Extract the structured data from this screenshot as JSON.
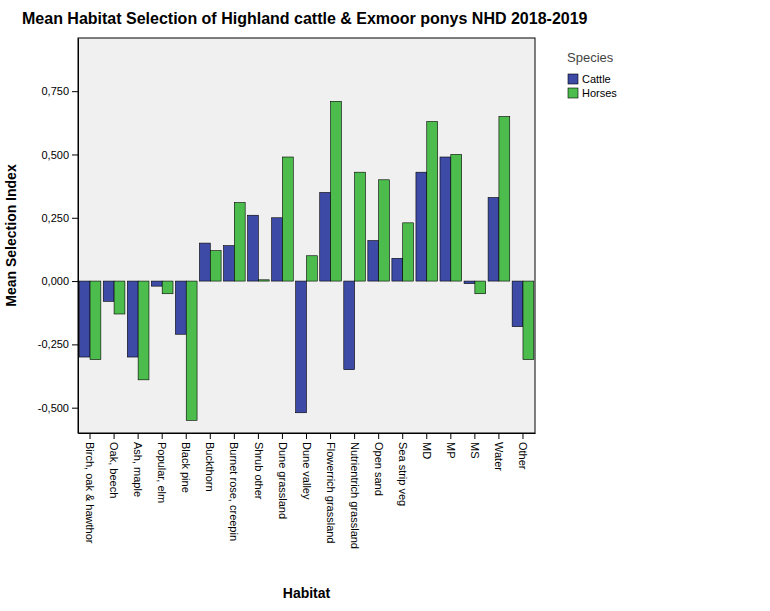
{
  "chart_data": {
    "type": "bar",
    "title": "Mean Habitat Selection of Highland cattle & Exmoor ponys NHD 2018-2019",
    "x_label": "Habitat",
    "y_label": "Mean Selection Index",
    "legend_title": "Species",
    "legend": "right",
    "grid": false,
    "categories": [
      "Birch, oak & hawthor",
      "Oak, beech",
      "Ash, maple",
      "Popular, elm",
      "Black pine",
      "Buckthorn",
      "Burnet rose, creepin",
      "Shrub other",
      "Dune grassland",
      "Dune valley",
      "Flowerrich grassland",
      "Nutrientrich grassland",
      "Open sand",
      "Sea strip veg",
      "MD",
      "MP",
      "MS",
      "Water",
      "Other"
    ],
    "series": [
      {
        "name": "Cattle",
        "color": "#3d4aa6",
        "values": [
          -0.3,
          -0.08,
          -0.3,
          -0.02,
          -0.21,
          0.15,
          0.14,
          0.26,
          0.25,
          -0.52,
          0.35,
          -0.35,
          0.16,
          0.09,
          0.43,
          0.49,
          -0.01,
          0.33,
          -0.18
        ]
      },
      {
        "name": "Horses",
        "color": "#4cbd4c",
        "values": [
          -0.31,
          -0.13,
          -0.39,
          -0.05,
          -0.55,
          0.12,
          0.31,
          0.005,
          0.49,
          0.1,
          0.71,
          0.43,
          0.4,
          0.23,
          0.63,
          0.5,
          -0.05,
          0.65,
          -0.31
        ]
      }
    ],
    "ylim": [
      -0.6,
      0.96
    ],
    "yticks": [
      {
        "value": -0.5,
        "label": "-0,500"
      },
      {
        "value": -0.25,
        "label": "-0,250"
      },
      {
        "value": 0,
        "label": "0,000"
      },
      {
        "value": 0.25,
        "label": "0,250"
      },
      {
        "value": 0.5,
        "label": "0,500"
      },
      {
        "value": 0.75,
        "label": "0,750"
      }
    ]
  }
}
